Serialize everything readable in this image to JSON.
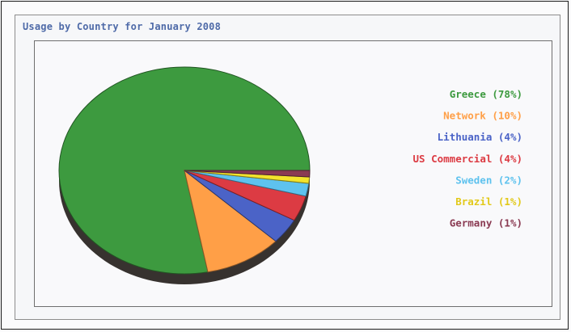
{
  "chart_data": {
    "type": "pie",
    "title": "Usage by Country for January 2008",
    "slices": [
      {
        "label": "Greece (78%)",
        "value": 78,
        "color": "#3d9a3f"
      },
      {
        "label": "Network (10%)",
        "value": 10,
        "color": "#ff9f47"
      },
      {
        "label": "Lithuania (4%)",
        "value": 4,
        "color": "#4b63c7"
      },
      {
        "label": "US Commercial (4%)",
        "value": 4,
        "color": "#dc3b43"
      },
      {
        "label": "Sweden (2%)",
        "value": 2,
        "color": "#5ec2ee"
      },
      {
        "label": "Brazil (1%)",
        "value": 1,
        "color": "#f2e32c"
      },
      {
        "label": "Germany (1%)",
        "value": 1,
        "color": "#8a3a52"
      }
    ],
    "legend_position": "right",
    "three_d": true
  }
}
